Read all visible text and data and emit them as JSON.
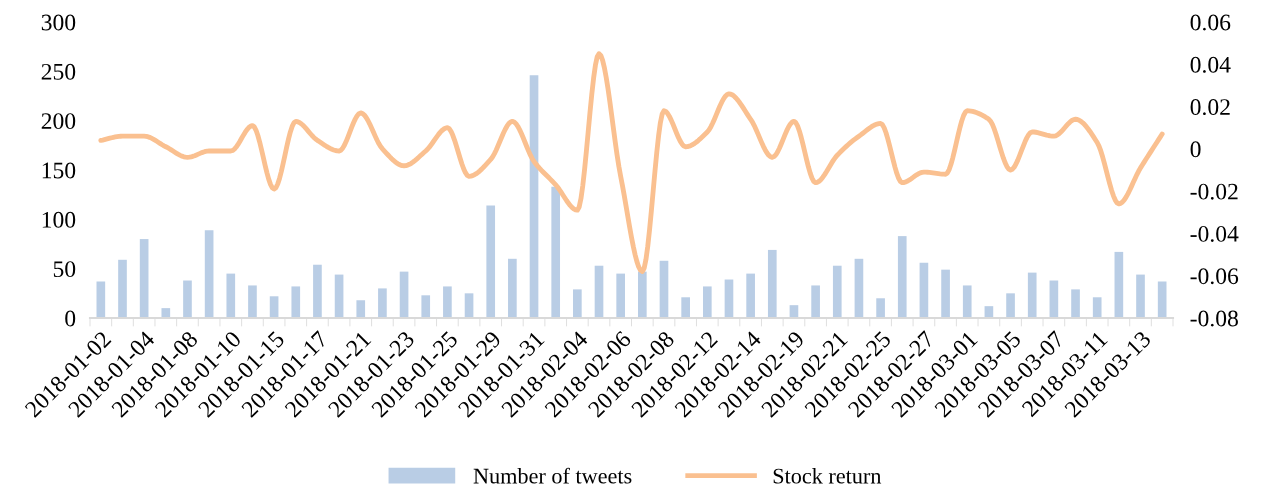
{
  "chart_data": {
    "type": "bar",
    "categories": [
      "2018-01-02",
      null,
      "2018-01-04",
      null,
      "2018-01-08",
      null,
      "2018-01-10",
      null,
      "2018-01-15",
      null,
      "2018-01-17",
      null,
      "2018-01-21",
      null,
      "2018-01-23",
      null,
      "2018-01-25",
      null,
      "2018-01-29",
      null,
      "2018-01-31",
      null,
      "2018-02-04",
      null,
      "2018-02-06",
      null,
      "2018-02-08",
      null,
      "2018-02-12",
      null,
      "2018-02-14",
      null,
      "2018-02-19",
      null,
      "2018-02-21",
      null,
      "2018-02-25",
      null,
      "2018-02-27",
      null,
      "2018-03-01",
      null,
      "2018-03-05",
      null,
      "2018-03-07",
      null,
      "2018-03-11",
      null,
      "2018-03-13",
      null
    ],
    "series": [
      {
        "name": "Number of tweets",
        "color": "#b9cde5",
        "values": [
          37,
          59,
          80,
          10,
          38,
          89,
          45,
          33,
          22,
          32,
          54,
          44,
          18,
          30,
          47,
          23,
          32,
          25,
          114,
          60,
          246,
          133,
          29,
          53,
          45,
          47,
          58,
          21,
          32,
          39,
          45,
          69,
          13,
          33,
          53,
          60,
          20,
          83,
          56,
          49,
          33,
          12,
          25,
          46,
          38,
          29,
          21,
          67,
          44,
          37
        ]
      },
      {
        "name": "Stock return",
        "type": "line",
        "axis": "y2",
        "color": "#fac090",
        "values": [
          0.004,
          0.006,
          0.006,
          0.001,
          -0.004,
          -0.001,
          -0.001,
          0.011,
          -0.019,
          0.013,
          0.004,
          -0.001,
          0.017,
          0.0,
          -0.008,
          -0.001,
          0.01,
          -0.013,
          -0.005,
          0.013,
          -0.006,
          -0.017,
          -0.029,
          0.045,
          -0.013,
          -0.058,
          0.018,
          0.001,
          0.008,
          0.026,
          0.014,
          -0.004,
          0.013,
          -0.016,
          -0.003,
          0.006,
          0.012,
          -0.016,
          -0.011,
          -0.012,
          0.018,
          0.014,
          -0.01,
          0.008,
          0.006,
          0.014,
          0.003,
          -0.026,
          -0.009,
          0.007
        ]
      }
    ],
    "ylim": [
      0,
      300
    ],
    "yticks": [
      0,
      50,
      100,
      150,
      200,
      250,
      300
    ],
    "y2lim": [
      -0.08,
      0.06
    ],
    "y2ticks": [
      {
        "value": -0.08,
        "label": "-0.08"
      },
      {
        "value": -0.06,
        "label": "-0.06"
      },
      {
        "value": -0.04,
        "label": "-0.04"
      },
      {
        "value": -0.02,
        "label": "-0.02"
      },
      {
        "value": 0,
        "label": "0"
      },
      {
        "value": 0.02,
        "label": "0.02"
      },
      {
        "value": 0.04,
        "label": "0.04"
      },
      {
        "value": 0.06,
        "label": "0.06"
      }
    ],
    "legend": "bottom",
    "grid": false,
    "line_style": "solid",
    "marker": "none"
  }
}
